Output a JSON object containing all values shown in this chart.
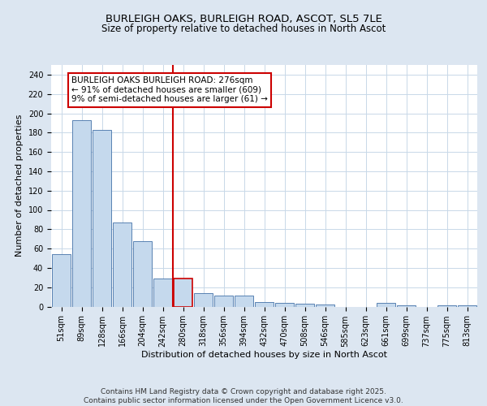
{
  "title_line1": "BURLEIGH OAKS, BURLEIGH ROAD, ASCOT, SL5 7LE",
  "title_line2": "Size of property relative to detached houses in North Ascot",
  "xlabel": "Distribution of detached houses by size in North Ascot",
  "ylabel": "Number of detached properties",
  "categories": [
    "51sqm",
    "89sqm",
    "128sqm",
    "166sqm",
    "204sqm",
    "242sqm",
    "280sqm",
    "318sqm",
    "356sqm",
    "394sqm",
    "432sqm",
    "470sqm",
    "508sqm",
    "546sqm",
    "585sqm",
    "623sqm",
    "661sqm",
    "699sqm",
    "737sqm",
    "775sqm",
    "813sqm"
  ],
  "values": [
    54,
    193,
    183,
    87,
    68,
    29,
    29,
    14,
    11,
    11,
    5,
    4,
    3,
    2,
    0,
    0,
    4,
    1,
    0,
    1,
    1
  ],
  "bar_color": "#c5d9ed",
  "bar_edge_color": "#4472a8",
  "highlight_bar_index": 6,
  "highlight_bar_edge_color": "#cc0000",
  "vline_color": "#cc0000",
  "annotation_text": "BURLEIGH OAKS BURLEIGH ROAD: 276sqm\n← 91% of detached houses are smaller (609)\n9% of semi-detached houses are larger (61) →",
  "annotation_box_edge_color": "#cc0000",
  "annotation_box_face_color": "#ffffff",
  "ylim": [
    0,
    250
  ],
  "yticks": [
    0,
    20,
    40,
    60,
    80,
    100,
    120,
    140,
    160,
    180,
    200,
    220,
    240
  ],
  "grid_color": "#c8d8e8",
  "background_color": "#dce6f1",
  "plot_background_color": "#ffffff",
  "footer_text": "Contains HM Land Registry data © Crown copyright and database right 2025.\nContains public sector information licensed under the Open Government Licence v3.0.",
  "title_fontsize": 9.5,
  "subtitle_fontsize": 8.5,
  "axis_label_fontsize": 8,
  "tick_fontsize": 7,
  "annotation_fontsize": 7.5,
  "footer_fontsize": 6.5
}
